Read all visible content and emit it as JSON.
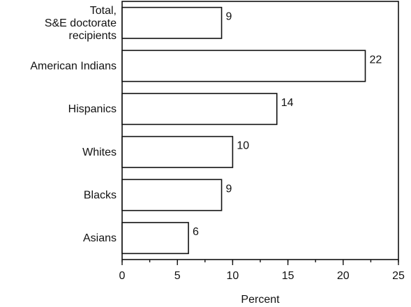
{
  "chart_data": {
    "type": "bar",
    "orientation": "horizontal",
    "categories": [
      [
        "Total,",
        "S&E doctorate",
        "recipients"
      ],
      [
        "American Indians"
      ],
      [
        "Hispanics"
      ],
      [
        "Whites"
      ],
      [
        "Blacks"
      ],
      [
        "Asians"
      ]
    ],
    "values": [
      9,
      22,
      14,
      10,
      9,
      6
    ],
    "value_labels": [
      "9",
      "22",
      "14",
      "10",
      "9",
      "6"
    ],
    "xlabel": "Percent",
    "xlim": [
      0,
      25
    ],
    "xticks": [
      0,
      5,
      10,
      15,
      20,
      25
    ],
    "xtick_labels": [
      "0",
      "5",
      "10",
      "15",
      "20",
      "25"
    ],
    "minor_tick_step": 2.5,
    "grid": false,
    "legend": "none"
  }
}
